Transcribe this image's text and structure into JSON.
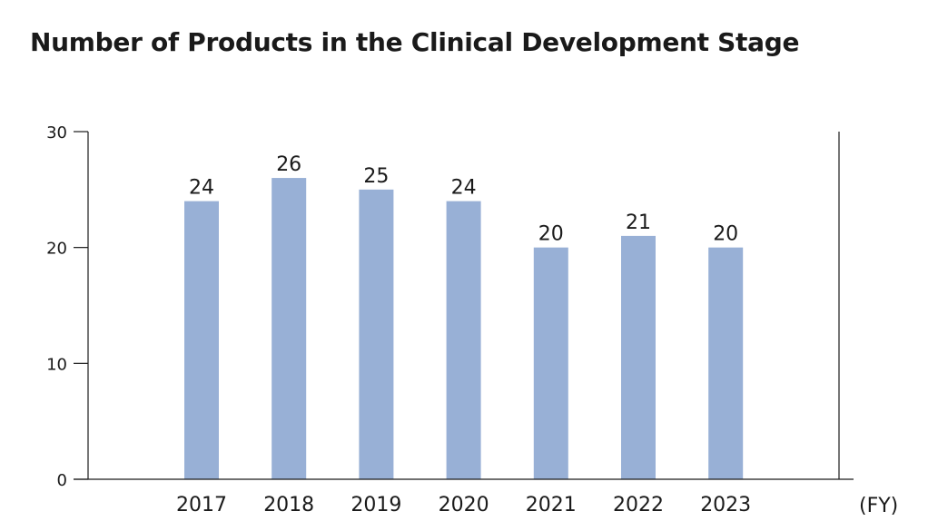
{
  "chart_data": {
    "type": "bar",
    "title": "Number of Products in the Clinical Development Stage",
    "xlabel": "(FY)",
    "ylabel": "",
    "categories": [
      "2017",
      "2018",
      "2019",
      "2020",
      "2021",
      "2022",
      "2023"
    ],
    "values": [
      24,
      26,
      25,
      24,
      20,
      21,
      20
    ],
    "data_labels": [
      "24",
      "26",
      "25",
      "24",
      "20",
      "21",
      "20"
    ],
    "ylim": [
      0,
      30
    ],
    "yticks": [
      0,
      10,
      20,
      30
    ],
    "ytick_labels": [
      "0",
      "10",
      "20",
      "30"
    ],
    "grid": false,
    "legend": "none",
    "colors": {
      "bar": "#98b0d6",
      "axis": "#1a1a1a",
      "text": "#1a1a1a"
    }
  }
}
